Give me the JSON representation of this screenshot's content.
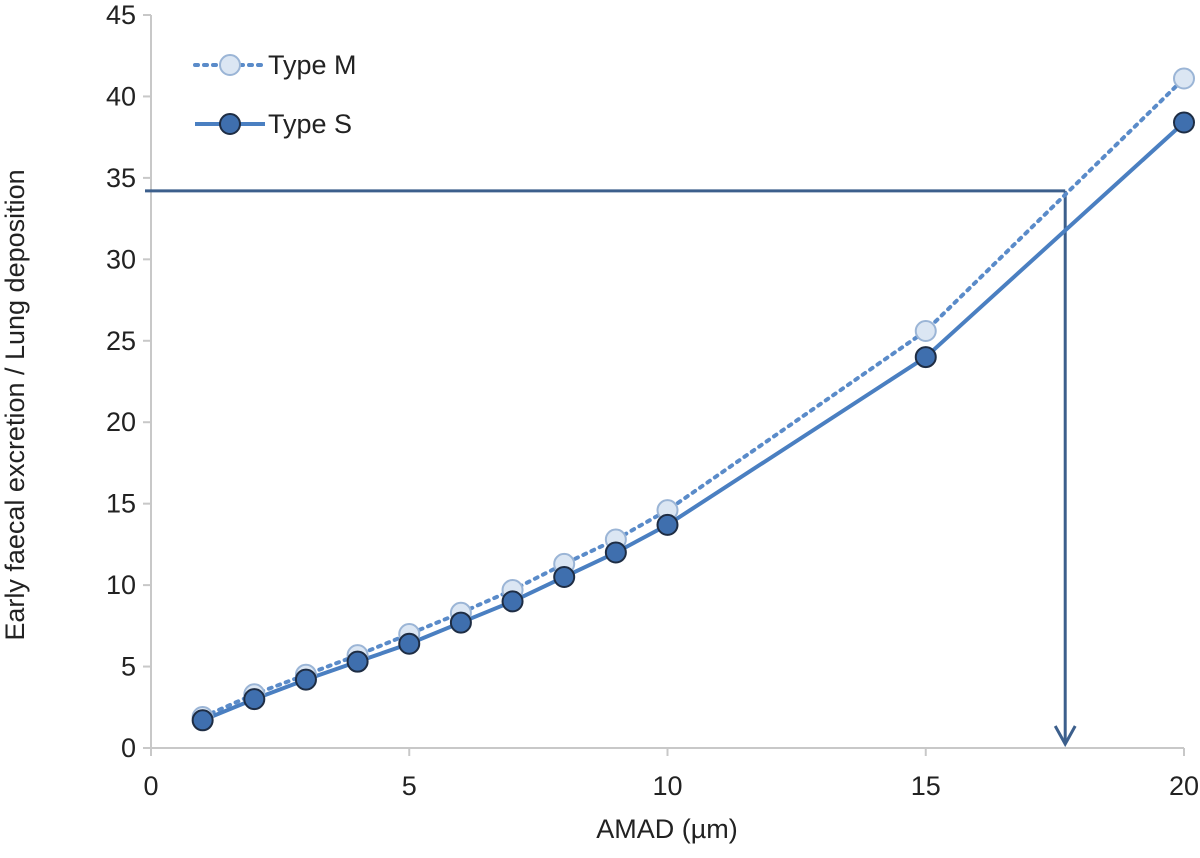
{
  "chart_data": {
    "type": "line",
    "title": "",
    "xlabel": "AMAD (µm)",
    "ylabel": "Early faecal excretion / Lung deposition",
    "xlim": [
      0,
      20
    ],
    "ylim": [
      0,
      45
    ],
    "xticks": [
      0,
      5,
      10,
      15,
      20
    ],
    "yticks": [
      0,
      5,
      10,
      15,
      20,
      25,
      30,
      35,
      40,
      45
    ],
    "grid": false,
    "legend_position": "top-left",
    "series": [
      {
        "name": "Type M",
        "line_style": "dotted",
        "color": "#5a8bc9",
        "marker_fill": "#dbe6f3",
        "marker_edge": "#9bb5d6",
        "x": [
          1,
          2,
          3,
          4,
          5,
          6,
          7,
          8,
          9,
          10,
          15,
          20
        ],
        "y": [
          1.9,
          3.3,
          4.5,
          5.7,
          7.0,
          8.3,
          9.7,
          11.3,
          12.8,
          14.6,
          25.6,
          41.1
        ]
      },
      {
        "name": "Type S",
        "line_style": "solid",
        "color": "#4a7fc1",
        "marker_fill": "#3f6fae",
        "marker_edge": "#1e2d44",
        "x": [
          1,
          2,
          3,
          4,
          5,
          6,
          7,
          8,
          9,
          10,
          15,
          20
        ],
        "y": [
          1.7,
          3.0,
          4.2,
          5.3,
          6.4,
          7.7,
          9.0,
          10.5,
          12.0,
          13.7,
          24.0,
          38.4
        ]
      }
    ],
    "annotation": {
      "type": "reading-arrow",
      "color": "#3c5f8c",
      "y_value": 34.2,
      "x_value": 17.7
    }
  }
}
